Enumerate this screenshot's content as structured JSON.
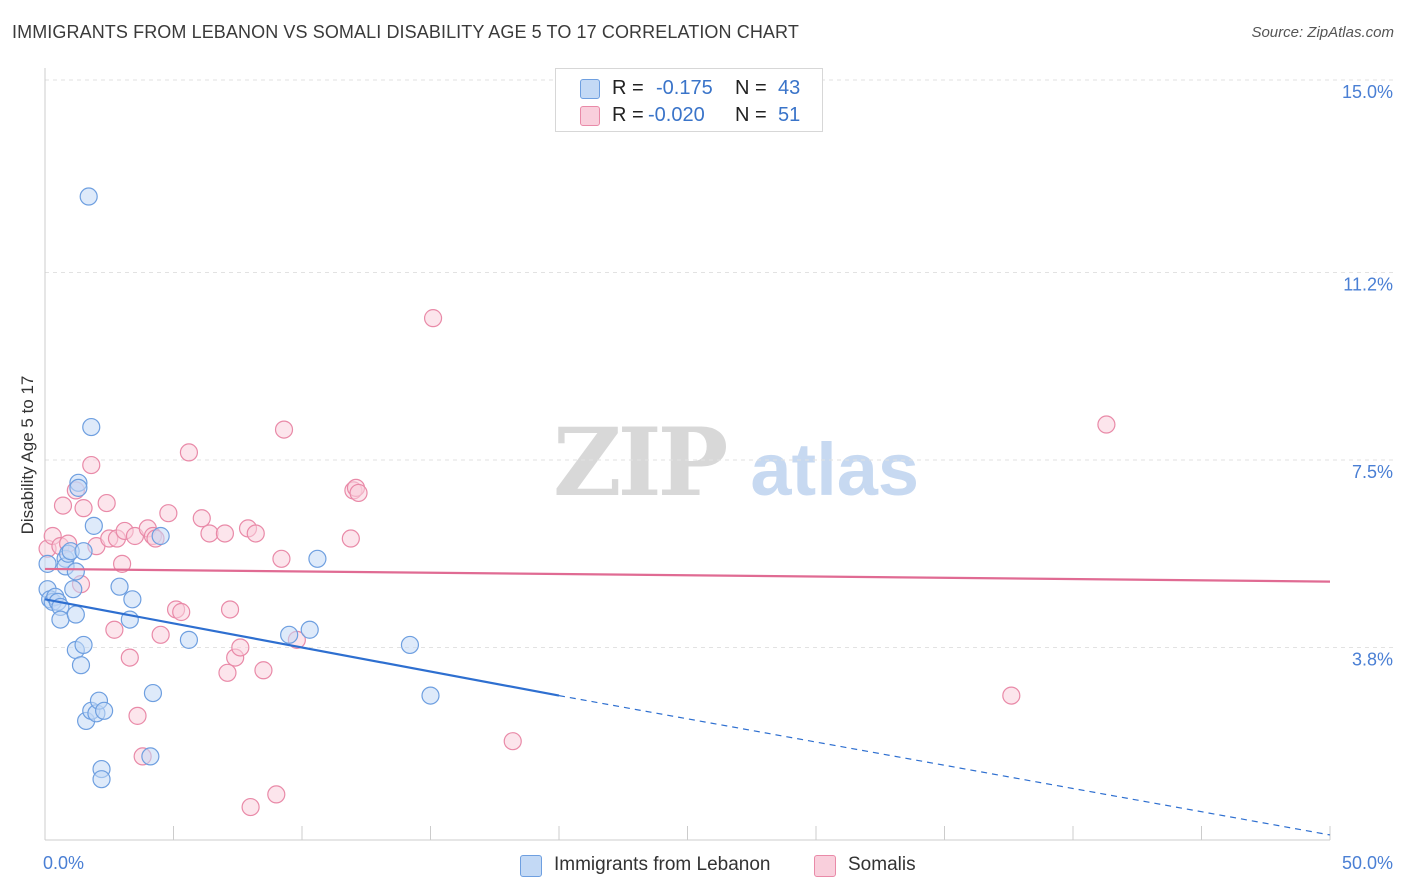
{
  "title": "IMMIGRANTS FROM LEBANON VS SOMALI DISABILITY AGE 5 TO 17 CORRELATION CHART",
  "source": "Source: ZipAtlas.com",
  "watermark": {
    "zip": "ZIP",
    "atlas": "atlas"
  },
  "colors": {
    "blue_fill": "#c3d9f5",
    "blue_stroke": "#6e9fe0",
    "blue_line": "#2e6fd0",
    "pink_fill": "#f9cfdc",
    "pink_stroke": "#e98aa8",
    "pink_line": "#e06b93",
    "tick_text": "#4a7fd4",
    "grid": "#e2e2e2"
  },
  "legend": {
    "rows": [
      {
        "r_label": "R = ",
        "r_value": "-0.175",
        "n_label": "N = ",
        "n_value": "43",
        "color": "blue"
      },
      {
        "r_label": "R = ",
        "r_value": "-0.020",
        "n_label": "N = ",
        "n_value": "51",
        "color": "pink"
      }
    ]
  },
  "bottom_legend": [
    "Immigrants from Lebanon",
    "Somalis"
  ],
  "chart_data": {
    "type": "scatter",
    "title": "IMMIGRANTS FROM LEBANON VS SOMALI DISABILITY AGE 5 TO 17 CORRELATION CHART",
    "ylabel": "Disability Age 5 to 17",
    "xlabel": "",
    "xlim": [
      0,
      50
    ],
    "ylim": [
      0,
      15
    ],
    "x_tick_labels": [
      "0.0%",
      "50.0%"
    ],
    "y_ticks": [
      3.8,
      7.5,
      11.2,
      15.0
    ],
    "y_tick_labels": [
      "3.8%",
      "7.5%",
      "11.2%",
      "15.0%"
    ],
    "grid": true,
    "legend_position": "top-center",
    "series": [
      {
        "name": "Immigrants from Lebanon",
        "color": "blue",
        "trend": {
          "x0": 0,
          "y0": 4.75,
          "x1": 20,
          "y1": 2.85,
          "x_end": 50,
          "y_end": 0.1
        },
        "points": [
          [
            0.1,
            5.45
          ],
          [
            0.1,
            4.95
          ],
          [
            0.2,
            4.75
          ],
          [
            0.3,
            4.7
          ],
          [
            0.4,
            4.8
          ],
          [
            0.5,
            4.7
          ],
          [
            0.6,
            4.6
          ],
          [
            0.6,
            4.35
          ],
          [
            0.8,
            5.55
          ],
          [
            0.8,
            5.4
          ],
          [
            0.9,
            5.65
          ],
          [
            1.0,
            5.7
          ],
          [
            1.1,
            4.95
          ],
          [
            1.2,
            3.75
          ],
          [
            1.2,
            5.3
          ],
          [
            1.2,
            4.45
          ],
          [
            1.3,
            7.05
          ],
          [
            1.3,
            6.95
          ],
          [
            1.4,
            3.45
          ],
          [
            1.5,
            5.7
          ],
          [
            1.5,
            3.85
          ],
          [
            1.6,
            2.35
          ],
          [
            1.7,
            12.7
          ],
          [
            1.8,
            8.15
          ],
          [
            1.8,
            2.55
          ],
          [
            1.9,
            6.2
          ],
          [
            2.0,
            2.5
          ],
          [
            2.1,
            2.75
          ],
          [
            2.2,
            1.4
          ],
          [
            2.2,
            1.2
          ],
          [
            2.3,
            2.55
          ],
          [
            2.9,
            5.0
          ],
          [
            3.3,
            4.35
          ],
          [
            3.4,
            4.75
          ],
          [
            4.1,
            1.65
          ],
          [
            4.2,
            2.9
          ],
          [
            4.5,
            6.0
          ],
          [
            5.6,
            3.95
          ],
          [
            9.5,
            4.05
          ],
          [
            10.3,
            4.15
          ],
          [
            10.6,
            5.55
          ],
          [
            14.2,
            3.85
          ],
          [
            15.0,
            2.85
          ]
        ]
      },
      {
        "name": "Somalis",
        "color": "pink",
        "trend": {
          "x0": 0,
          "y0": 5.35,
          "x1": 50,
          "y1": 5.1
        },
        "points": [
          [
            0.1,
            5.75
          ],
          [
            0.3,
            6.0
          ],
          [
            0.6,
            5.8
          ],
          [
            0.7,
            6.6
          ],
          [
            0.9,
            5.85
          ],
          [
            1.2,
            6.9
          ],
          [
            1.4,
            5.05
          ],
          [
            1.5,
            6.55
          ],
          [
            1.8,
            7.4
          ],
          [
            2.0,
            5.8
          ],
          [
            2.4,
            6.65
          ],
          [
            2.5,
            5.95
          ],
          [
            2.7,
            4.15
          ],
          [
            2.8,
            5.95
          ],
          [
            3.0,
            5.45
          ],
          [
            3.1,
            6.1
          ],
          [
            3.3,
            3.6
          ],
          [
            3.5,
            6.0
          ],
          [
            3.6,
            2.45
          ],
          [
            3.8,
            1.65
          ],
          [
            4.0,
            6.15
          ],
          [
            4.2,
            6.0
          ],
          [
            4.3,
            5.95
          ],
          [
            4.5,
            4.05
          ],
          [
            4.8,
            6.45
          ],
          [
            5.1,
            4.55
          ],
          [
            5.3,
            4.5
          ],
          [
            5.6,
            7.65
          ],
          [
            6.1,
            6.35
          ],
          [
            6.4,
            6.05
          ],
          [
            7.0,
            6.05
          ],
          [
            7.1,
            3.3
          ],
          [
            7.2,
            4.55
          ],
          [
            7.4,
            3.6
          ],
          [
            7.6,
            3.8
          ],
          [
            7.9,
            6.15
          ],
          [
            8.0,
            0.65
          ],
          [
            8.2,
            6.05
          ],
          [
            8.5,
            3.35
          ],
          [
            9.0,
            0.9
          ],
          [
            9.2,
            5.55
          ],
          [
            9.3,
            8.1
          ],
          [
            9.8,
            3.95
          ],
          [
            12.0,
            6.9
          ],
          [
            12.1,
            6.95
          ],
          [
            12.2,
            6.85
          ],
          [
            11.9,
            5.95
          ],
          [
            15.1,
            10.3
          ],
          [
            18.2,
            1.95
          ],
          [
            37.6,
            2.85
          ],
          [
            41.3,
            8.2
          ]
        ]
      }
    ]
  }
}
